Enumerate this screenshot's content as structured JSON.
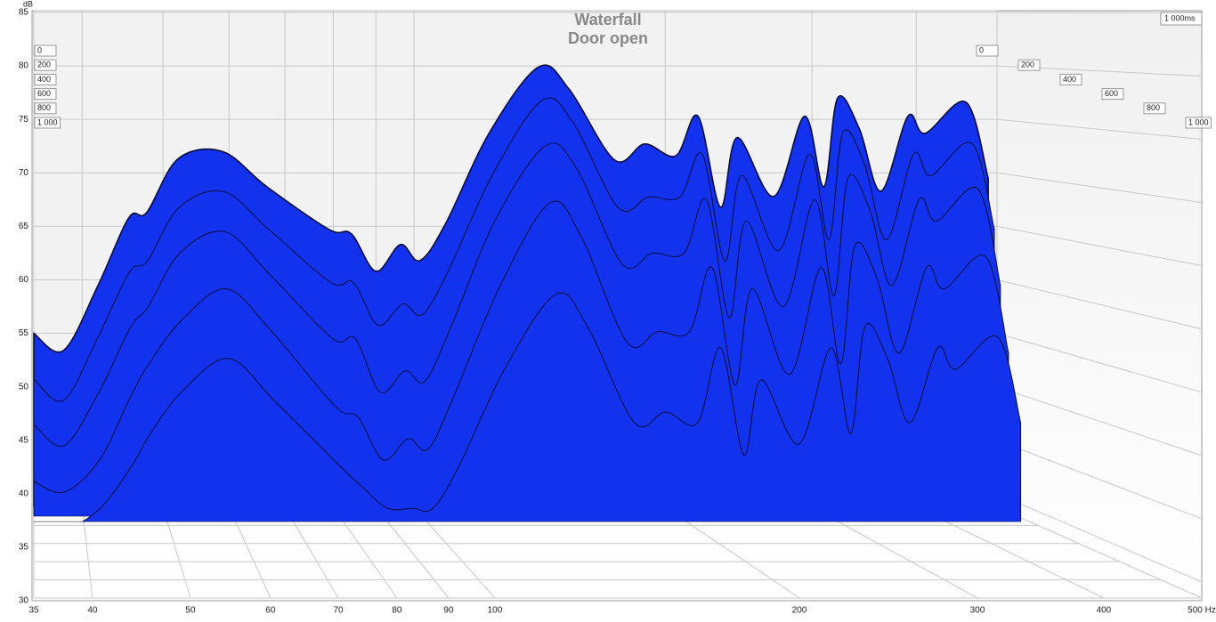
{
  "chart_data": {
    "type": "waterfall",
    "title": "Waterfall",
    "subtitle": "Door open",
    "ylabel": "dB",
    "ylim": [
      30,
      85
    ],
    "yticks": [
      30,
      35,
      40,
      45,
      50,
      55,
      60,
      65,
      70,
      75,
      80,
      85
    ],
    "xscale": "log",
    "xlim": [
      35,
      500
    ],
    "xticks": [
      35,
      40,
      50,
      60,
      70,
      80,
      90,
      100,
      200,
      300,
      400,
      {
        "value": 500,
        "label": "500 Hz"
      }
    ],
    "zlim": [
      0,
      1000
    ],
    "zticks": [
      0,
      200,
      400,
      600,
      800,
      {
        "value": 1000,
        "label": "1 000"
      }
    ],
    "z_end_label": "1 000ms",
    "grid": true,
    "color": "#1232ee",
    "line_color": "#0c0c3a",
    "x": [
      35,
      38,
      41.8,
      45.5,
      47.8,
      52.1,
      58.9,
      66.6,
      79.1,
      84.1,
      90,
      96.3,
      101.6,
      109,
      123,
      141,
      153.5,
      174,
      189,
      206,
      219,
      233,
      244,
      270,
      294,
      310,
      322,
      342,
      363,
      391,
      410,
      459,
      488
    ],
    "series": [
      {
        "time": 0,
        "values": [
          55,
          53.4,
          59.5,
          65.8,
          66.3,
          71.3,
          72,
          68.7,
          64.7,
          64.3,
          60.8,
          63.3,
          61.8,
          65.2,
          73.7,
          79.9,
          77.8,
          71.2,
          72.7,
          71.6,
          75.3,
          66.8,
          73.3,
          67.8,
          75.3,
          68.7,
          77,
          74.1,
          68.3,
          75.3,
          73.7,
          76.6,
          69.5
        ]
      },
      {
        "time": 30,
        "values": [
          51,
          49,
          55,
          61,
          62,
          67,
          68.5,
          65,
          60,
          60,
          56,
          58,
          57,
          61,
          70,
          77,
          75,
          67,
          68,
          68,
          72,
          62,
          70,
          63,
          72,
          64,
          74,
          71,
          64,
          72,
          70,
          73,
          65
        ]
      },
      {
        "time": 60,
        "values": [
          47,
          45,
          50,
          56,
          58,
          63,
          65,
          61,
          55,
          55,
          50,
          52,
          51,
          56,
          66,
          73,
          71,
          62,
          63,
          63,
          68,
          57,
          66,
          58,
          68,
          59,
          70,
          67,
          60,
          68,
          66,
          69,
          60
        ]
      },
      {
        "time": 100,
        "values": [
          42,
          41,
          44,
          50,
          53,
          57,
          60,
          56,
          49,
          48,
          44,
          46,
          45,
          50,
          60,
          68,
          65,
          55,
          56,
          56,
          62,
          51,
          60,
          52,
          62,
          53,
          64,
          61,
          54,
          62,
          60,
          63,
          54
        ]
      },
      {
        "time": 160,
        "values": [
          38,
          38,
          40,
          44,
          47,
          51,
          54,
          50,
          44,
          42,
          40,
          40,
          40,
          44,
          53,
          60,
          57,
          48,
          49,
          48,
          55,
          45,
          52,
          46,
          55,
          47,
          57,
          54,
          48,
          55,
          53,
          56,
          48
        ]
      }
    ]
  }
}
